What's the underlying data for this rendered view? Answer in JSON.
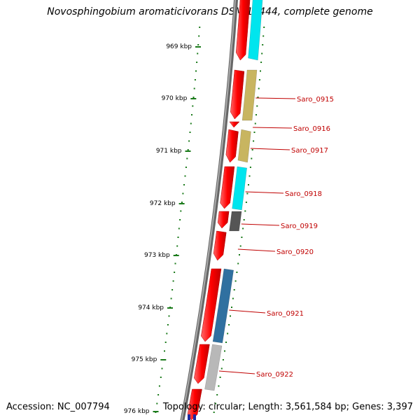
{
  "title": "Novosphingobium aromaticivorans DSM 12444, complete genome",
  "footer": {
    "accession": "Accession: NC_007794",
    "summary": "Topology: circular; Length: 3,561,584 bp; Genes: 3,397"
  },
  "ticks": [
    "969 kbp",
    "970 kbp",
    "971 kbp",
    "972 kbp",
    "973 kbp",
    "974 kbp",
    "975 kbp",
    "976 kbp"
  ],
  "genes": [
    {
      "name": "Saro_0915",
      "color": "#c8b560"
    },
    {
      "name": "Saro_0916",
      "color": "#ff0000"
    },
    {
      "name": "Saro_0917",
      "color": "#c8b560"
    },
    {
      "name": "Saro_0918",
      "color": "#00e5ee"
    },
    {
      "name": "Saro_0919",
      "color": "#555555"
    },
    {
      "name": "Saro_0920",
      "color": "#ff0000"
    },
    {
      "name": "Saro_0921",
      "color": "#3070a0"
    },
    {
      "name": "Saro_0922",
      "color": "#b8b8b8"
    }
  ],
  "colors": {
    "cds": "#ff0000",
    "backbone": "#888888",
    "gc_ticks": "#1a7a1a",
    "label": "#c00000"
  }
}
